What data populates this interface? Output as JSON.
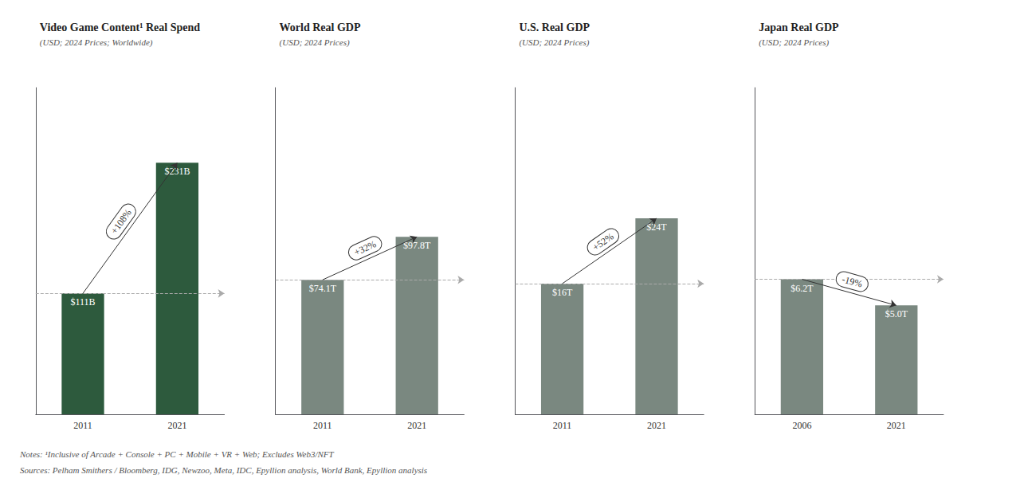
{
  "chart_data": [
    {
      "type": "bar",
      "title": "Video Game Content¹ Real Spend",
      "subtitle": "(USD; 2024 Prices; Worldwide)",
      "categories": [
        "2011",
        "2021"
      ],
      "values": [
        111,
        231
      ],
      "value_labels": [
        "$111B",
        "$231B"
      ],
      "color": "#2d5a3d",
      "annotation": "+108%",
      "ylim": [
        0,
        300
      ],
      "tick_labels": "x",
      "grid": false,
      "data_labels": true
    },
    {
      "type": "bar",
      "title": "World Real GDP",
      "subtitle": "(USD; 2024 Prices)",
      "categories": [
        "2011",
        "2021"
      ],
      "values": [
        74.1,
        97.8
      ],
      "value_labels": [
        "$74.1T",
        "$97.8T"
      ],
      "color": "#7a8880",
      "annotation": "+32%",
      "ylim": [
        0,
        180
      ],
      "tick_labels": "x",
      "grid": false,
      "data_labels": true
    },
    {
      "type": "bar",
      "title": "U.S. Real GDP",
      "subtitle": "(USD; 2024 Prices)",
      "categories": [
        "2011",
        "2021"
      ],
      "values": [
        16,
        24
      ],
      "value_labels": [
        "$16T",
        "$24T"
      ],
      "color": "#7a8880",
      "annotation": "+52%",
      "ylim": [
        0,
        40
      ],
      "tick_labels": "x",
      "grid": false,
      "data_labels": true
    },
    {
      "type": "bar",
      "title": "Japan Real GDP",
      "subtitle": "(USD; 2024 Prices)",
      "categories": [
        "2006",
        "2021"
      ],
      "values": [
        6.2,
        5.0
      ],
      "value_labels": [
        "$6.2T",
        "$5.0T"
      ],
      "color": "#7a8880",
      "annotation": "-19%",
      "ylim": [
        0,
        15
      ],
      "tick_labels": "x",
      "grid": false,
      "data_labels": true
    }
  ],
  "notes": "Notes: ¹Inclusive of Arcade + Console + PC + Mobile + VR + Web; Excludes Web3/NFT",
  "sources": "Sources: Pelham Smithers / Bloomberg, IDG, Newzoo, Meta, IDC, Epyllion analysis, World Bank, Epyllion analysis"
}
